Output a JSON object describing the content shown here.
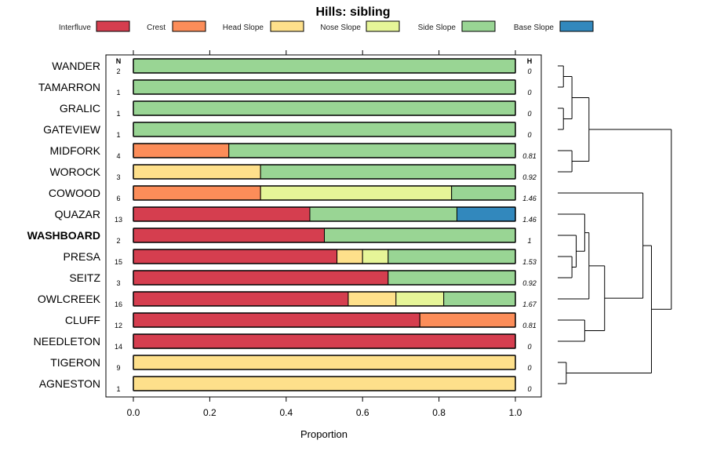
{
  "chart_data": {
    "type": "bar",
    "stacked": true,
    "orientation": "horizontal",
    "title": "Hills: sibling",
    "xlabel": "Proportion",
    "ylabel": "",
    "xlim": [
      0,
      1
    ],
    "x_ticks": [
      "0.0",
      "0.2",
      "0.4",
      "0.6",
      "0.8",
      "1.0"
    ],
    "n_header": "N",
    "h_header": "H",
    "legend": [
      {
        "name": "Interfluve",
        "color": "#d53e4f"
      },
      {
        "name": "Crest",
        "color": "#fc8d59"
      },
      {
        "name": "Head Slope",
        "color": "#fee08b"
      },
      {
        "name": "Nose Slope",
        "color": "#e6f598"
      },
      {
        "name": "Side Slope",
        "color": "#99d594"
      },
      {
        "name": "Base Slope",
        "color": "#3288bd"
      }
    ],
    "rows": [
      {
        "label": "WANDER",
        "n": "2",
        "h": "0",
        "bold": false,
        "values": [
          0,
          0,
          0,
          0,
          1.0,
          0
        ]
      },
      {
        "label": "TAMARRON",
        "n": "1",
        "h": "0",
        "bold": false,
        "values": [
          0,
          0,
          0,
          0,
          1.0,
          0
        ]
      },
      {
        "label": "GRALIC",
        "n": "1",
        "h": "0",
        "bold": false,
        "values": [
          0,
          0,
          0,
          0,
          1.0,
          0
        ]
      },
      {
        "label": "GATEVIEW",
        "n": "1",
        "h": "0",
        "bold": false,
        "values": [
          0,
          0,
          0,
          0,
          1.0,
          0
        ]
      },
      {
        "label": "MIDFORK",
        "n": "4",
        "h": "0.81",
        "bold": false,
        "values": [
          0,
          0.25,
          0,
          0,
          0.75,
          0
        ]
      },
      {
        "label": "WOROCK",
        "n": "3",
        "h": "0.92",
        "bold": false,
        "values": [
          0,
          0,
          0.333,
          0,
          0.667,
          0
        ]
      },
      {
        "label": "COWOOD",
        "n": "6",
        "h": "1.46",
        "bold": false,
        "values": [
          0,
          0.333,
          0,
          0.5,
          0.167,
          0
        ]
      },
      {
        "label": "QUAZAR",
        "n": "13",
        "h": "1.46",
        "bold": false,
        "values": [
          0.462,
          0,
          0,
          0,
          0.385,
          0.153
        ]
      },
      {
        "label": "WASHBOARD",
        "n": "2",
        "h": "1",
        "bold": true,
        "values": [
          0.5,
          0,
          0,
          0,
          0.5,
          0
        ]
      },
      {
        "label": "PRESA",
        "n": "15",
        "h": "1.53",
        "bold": false,
        "values": [
          0.533,
          0,
          0.067,
          0.067,
          0.333,
          0
        ]
      },
      {
        "label": "SEITZ",
        "n": "3",
        "h": "0.92",
        "bold": false,
        "values": [
          0.667,
          0,
          0,
          0,
          0.333,
          0
        ]
      },
      {
        "label": "OWLCREEK",
        "n": "16",
        "h": "1.67",
        "bold": false,
        "values": [
          0.5625,
          0,
          0.125,
          0.125,
          0.1875,
          0
        ]
      },
      {
        "label": "CLUFF",
        "n": "12",
        "h": "0.81",
        "bold": false,
        "values": [
          0.75,
          0.25,
          0,
          0,
          0,
          0
        ]
      },
      {
        "label": "NEEDLETON",
        "n": "14",
        "h": "0",
        "bold": false,
        "values": [
          1.0,
          0,
          0,
          0,
          0,
          0
        ]
      },
      {
        "label": "TIGERON",
        "n": "9",
        "h": "0",
        "bold": false,
        "values": [
          0,
          0,
          1.0,
          0,
          0,
          0
        ]
      },
      {
        "label": "AGNESTON",
        "n": "1",
        "h": "0",
        "bold": false,
        "values": [
          0,
          0,
          1.0,
          0,
          0,
          0
        ]
      }
    ],
    "dendrogram": {
      "note": "hierarchical clustering of rows; leaves are row indices, heights in relative dissimilarity units",
      "links": [
        {
          "a": "r0",
          "b": "r1",
          "height": 0.04
        },
        {
          "a": "r2",
          "b": "r3",
          "height": 0.04
        },
        {
          "a": "m0",
          "b": "m1",
          "height": 0.1
        },
        {
          "a": "r4",
          "b": "r5",
          "height": 0.1
        },
        {
          "a": "m2",
          "b": "m3",
          "height": 0.22
        },
        {
          "a": "r9",
          "b": "r10",
          "height": 0.1
        },
        {
          "a": "r8",
          "b": "m5",
          "height": 0.13
        },
        {
          "a": "r7",
          "b": "m6",
          "height": 0.19
        },
        {
          "a": "r11",
          "b": "m7",
          "height": 0.22
        },
        {
          "a": "r12",
          "b": "r13",
          "height": 0.19
        },
        {
          "a": "m8",
          "b": "m9",
          "height": 0.33
        },
        {
          "a": "r6",
          "b": "m10",
          "height": 0.6
        },
        {
          "a": "r14",
          "b": "r15",
          "height": 0.06
        },
        {
          "a": "m11",
          "b": "m12",
          "height": 0.66
        },
        {
          "a": "m4",
          "b": "m13",
          "height": 0.8
        }
      ]
    }
  }
}
